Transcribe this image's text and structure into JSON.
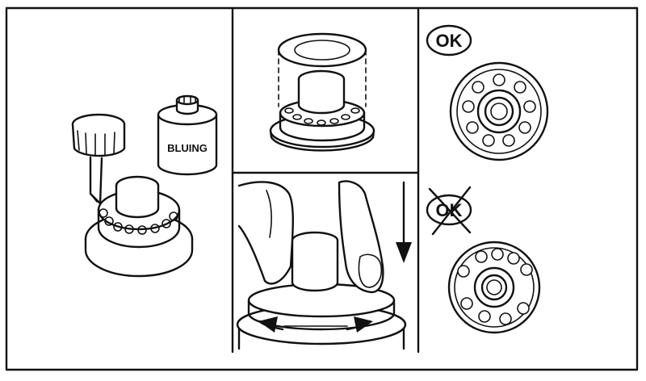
{
  "colors": {
    "ink": "#111111",
    "paper": "#ffffff"
  },
  "panels": {
    "left": {
      "can_label": "BLUING",
      "icons": [
        "brush-icon",
        "bluing-can-icon",
        "bearing-assembly-icon"
      ]
    },
    "center_top": {
      "icons": [
        "sleeve-icon",
        "bearing-assembly-icon"
      ]
    },
    "center_bottom": {
      "icons": [
        "hand-icon",
        "press-down-arrow-icon",
        "rotate-arrows-icon"
      ]
    },
    "right_top": {
      "badge": "OK",
      "icons": [
        "ok-badge-icon",
        "bearing-top-view-icon"
      ]
    },
    "right_bottom": {
      "badge": "OK",
      "icons": [
        "not-ok-badge-icon",
        "bearing-top-view-icon"
      ]
    }
  }
}
